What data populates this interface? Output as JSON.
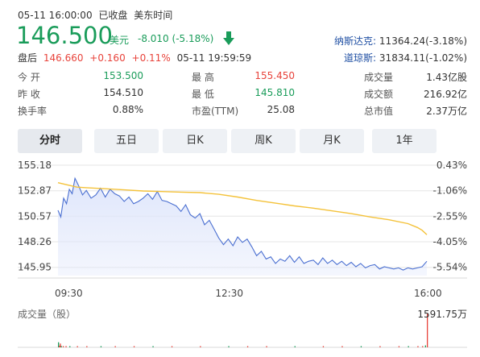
{
  "header": {
    "datetime": "05-11 16:00:00",
    "status": "已收盘",
    "timezone": "美东时间"
  },
  "quote": {
    "price": "146.500",
    "currency": "美元",
    "change": "-8.010",
    "change_pct": "(-5.18%)",
    "direction_icon": "down-arrow-icon"
  },
  "after_hours": {
    "label": "盘后",
    "price": "146.660",
    "change": "+0.160",
    "change_pct": "+0.11%",
    "time": "05-11 19:59:59"
  },
  "indices": [
    {
      "label": "纳斯达克:",
      "value": "11364.24(-3.18%)"
    },
    {
      "label": "道琼斯:",
      "value": "31834.11(-1.02%)"
    }
  ],
  "stats": [
    {
      "label": "今  开",
      "value": "153.500",
      "color": "#1a9c5a"
    },
    {
      "label": "最  高",
      "value": "155.450",
      "color": "#e8433b"
    },
    {
      "label": "成交量",
      "value": "1.43亿股",
      "color": "#333333"
    },
    {
      "label": "昨  收",
      "value": "154.510",
      "color": "#333333"
    },
    {
      "label": "最  低",
      "value": "145.810",
      "color": "#1a9c5a"
    },
    {
      "label": "成交额",
      "value": "216.92亿",
      "color": "#333333"
    },
    {
      "label": "换手率",
      "value": "0.88%",
      "color": "#333333"
    },
    {
      "label": "市盈(TTM)",
      "value": "25.08",
      "color": "#333333"
    },
    {
      "label": "总市值",
      "value": "2.37万亿",
      "color": "#333333"
    }
  ],
  "tabs": [
    {
      "label": "分时",
      "active": true
    },
    {
      "label": "五日",
      "active": false
    },
    {
      "label": "日K",
      "active": false
    },
    {
      "label": "周K",
      "active": false
    },
    {
      "label": "月K",
      "active": false
    },
    {
      "label": "1年",
      "active": false
    }
  ],
  "volume": {
    "label": "成交量（股）",
    "max_label": "1591.75万"
  },
  "colors": {
    "price_line": "#4a6fd1",
    "price_fill": "#dfe6fb",
    "avg_line": "#f4c23a",
    "volume_red": "#e8433b",
    "volume_green": "#1a9c5a",
    "up": "#e8433b",
    "down": "#1a9c5a"
  },
  "chart_data": {
    "type": "line",
    "xlabel": "",
    "ylabel": "",
    "x_ticks": [
      "09:30",
      "12:30",
      "16:00"
    ],
    "y_ticks_price": [
      "155.18",
      "152.87",
      "150.57",
      "148.26",
      "145.95"
    ],
    "y_ticks_pct": [
      "0.43%",
      "-1.06%",
      "-2.55%",
      "-4.05%",
      "-5.54%"
    ],
    "ylim": [
      145.2,
      155.18
    ],
    "x_range_minutes": [
      0,
      390
    ],
    "grid": true,
    "series": [
      {
        "role": "price",
        "x": [
          0,
          3,
          6,
          9,
          12,
          15,
          18,
          22,
          26,
          30,
          35,
          40,
          45,
          50,
          55,
          60,
          65,
          70,
          75,
          80,
          85,
          90,
          95,
          100,
          105,
          110,
          115,
          120,
          125,
          130,
          135,
          140,
          145,
          150,
          155,
          160,
          165,
          170,
          175,
          180,
          185,
          190,
          195,
          200,
          205,
          210,
          215,
          220,
          225,
          230,
          235,
          240,
          245,
          250,
          255,
          260,
          265,
          270,
          275,
          280,
          285,
          290,
          295,
          300,
          305,
          310,
          315,
          320,
          325,
          330,
          335,
          340,
          345,
          350,
          355,
          360,
          365,
          370,
          375,
          380,
          385,
          390
        ],
        "values": [
          151.1,
          150.5,
          152.2,
          151.7,
          153.0,
          152.6,
          154.0,
          153.3,
          152.5,
          152.9,
          152.2,
          152.5,
          153.1,
          152.3,
          153.0,
          152.6,
          152.4,
          151.9,
          152.3,
          151.7,
          151.9,
          152.2,
          152.6,
          152.1,
          152.8,
          152.0,
          151.9,
          151.7,
          151.5,
          151.0,
          151.6,
          150.7,
          150.4,
          150.8,
          149.8,
          150.2,
          149.4,
          148.6,
          148.0,
          148.5,
          147.9,
          148.7,
          148.2,
          148.5,
          147.8,
          147.0,
          147.4,
          146.7,
          146.9,
          146.3,
          146.7,
          146.5,
          147.0,
          146.4,
          146.9,
          146.3,
          146.5,
          146.6,
          146.2,
          146.8,
          146.3,
          146.6,
          146.2,
          146.5,
          146.1,
          146.4,
          146.0,
          146.3,
          145.9,
          146.1,
          146.2,
          145.8,
          146.0,
          145.9,
          145.8,
          145.9,
          145.7,
          145.9,
          145.8,
          145.9,
          146.0,
          146.5
        ]
      },
      {
        "role": "average",
        "x": [
          0,
          10,
          20,
          30,
          50,
          70,
          90,
          110,
          130,
          150,
          170,
          190,
          210,
          230,
          250,
          270,
          290,
          310,
          330,
          350,
          370,
          380,
          385,
          390
        ],
        "values": [
          153.6,
          153.4,
          153.2,
          153.15,
          153.05,
          152.95,
          152.85,
          152.8,
          152.75,
          152.7,
          152.55,
          152.3,
          152.0,
          151.75,
          151.5,
          151.3,
          151.05,
          150.8,
          150.5,
          150.25,
          149.9,
          149.55,
          149.3,
          148.9
        ]
      }
    ],
    "volume": {
      "x": [
        0,
        1,
        2,
        3,
        5,
        8,
        12,
        20,
        30,
        45,
        60,
        80,
        100,
        120,
        150,
        180,
        200,
        220,
        250,
        280,
        300,
        320,
        340,
        360,
        370,
        380,
        385,
        388,
        390
      ],
      "values": [
        40,
        12,
        30,
        10,
        6,
        8,
        5,
        6,
        4,
        5,
        3,
        4,
        3,
        3,
        2,
        4,
        3,
        3,
        2,
        2,
        3,
        2,
        3,
        3,
        4,
        5,
        8,
        15,
        1591.75
      ],
      "unit": "万"
    }
  }
}
